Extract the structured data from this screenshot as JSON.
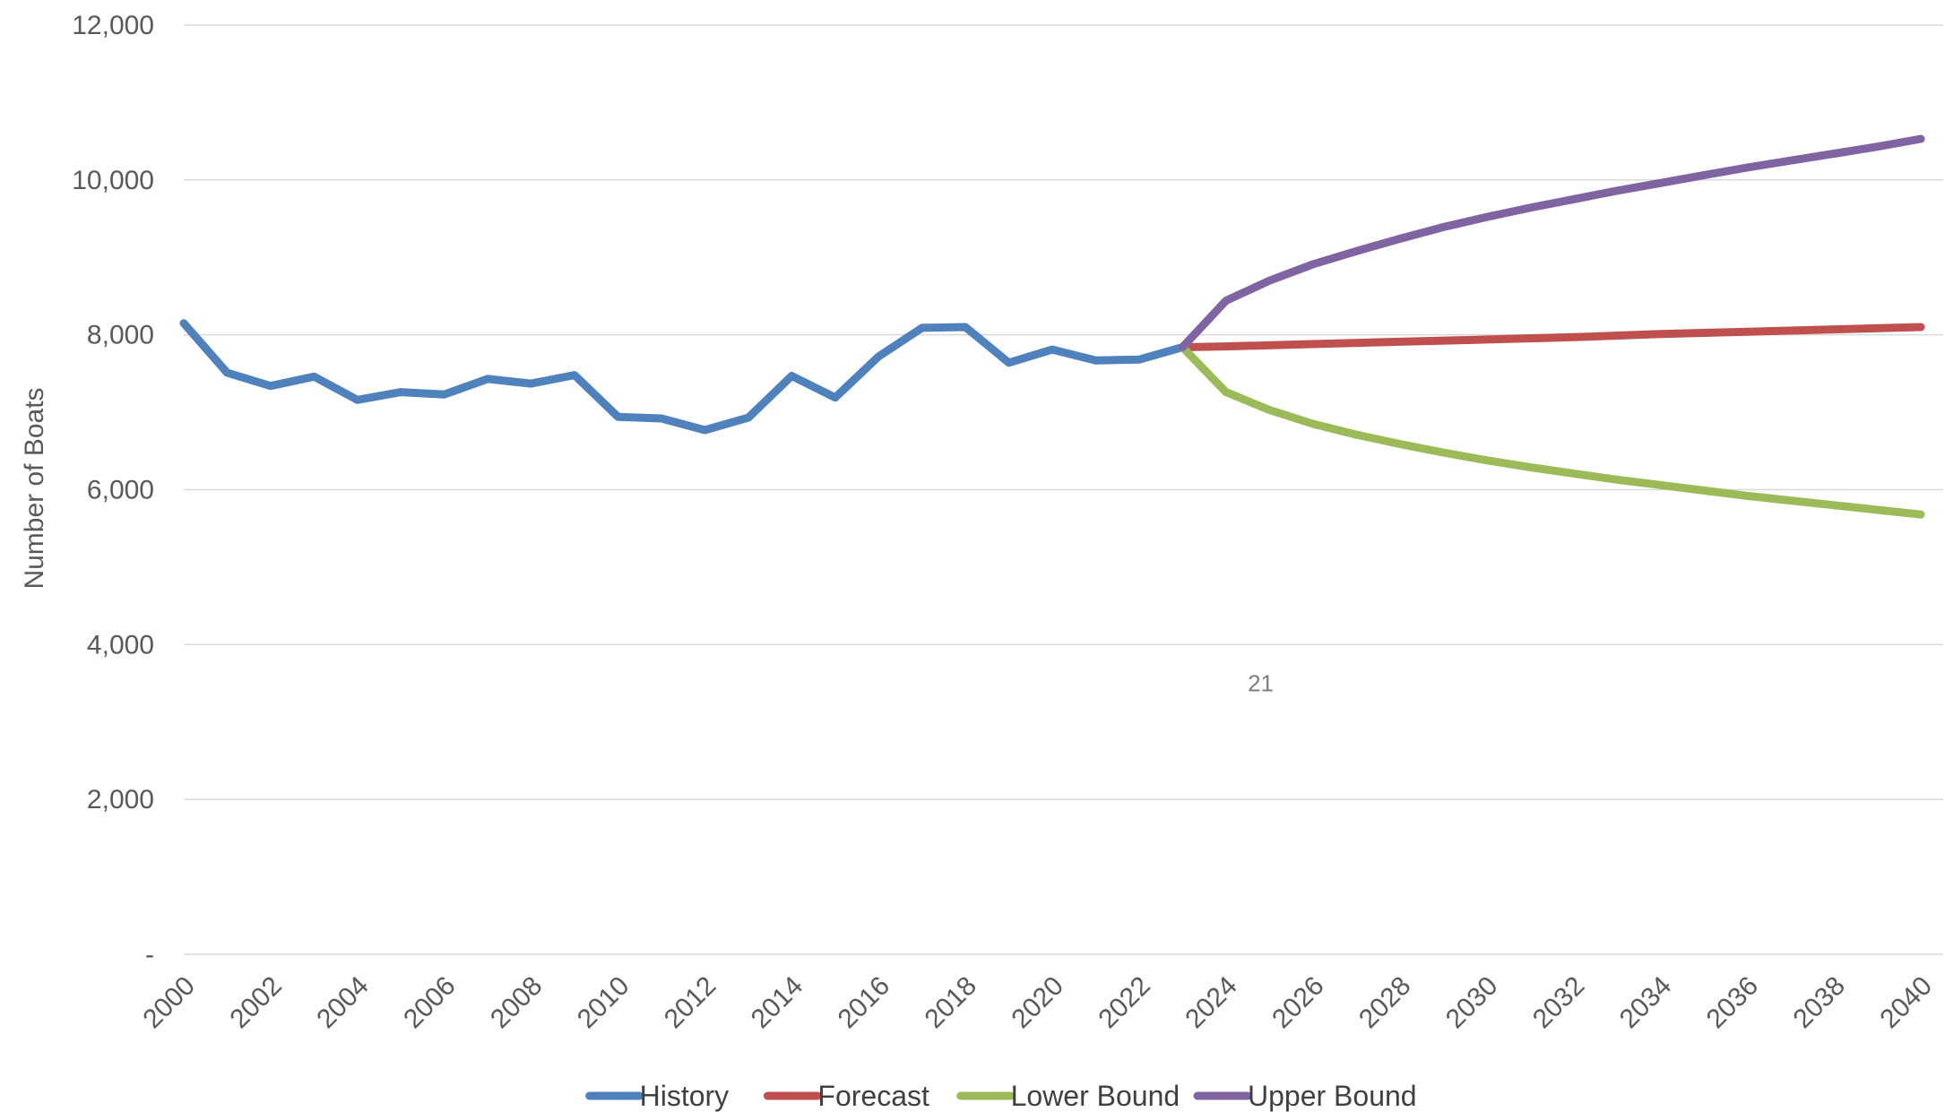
{
  "chart_data": {
    "type": "line",
    "title": "",
    "xlabel": "",
    "ylabel": "Number of Boats",
    "ylim": [
      0,
      12000
    ],
    "xlim": [
      2000,
      2040
    ],
    "y_ticks": [
      {
        "value": 0,
        "label": "-"
      },
      {
        "value": 2000,
        "label": "2,000"
      },
      {
        "value": 4000,
        "label": "4,000"
      },
      {
        "value": 6000,
        "label": "6,000"
      },
      {
        "value": 8000,
        "label": "8,000"
      },
      {
        "value": 10000,
        "label": "10,000"
      },
      {
        "value": 12000,
        "label": "12,000"
      }
    ],
    "x_ticks": [
      "2000",
      "2002",
      "2004",
      "2006",
      "2008",
      "2010",
      "2012",
      "2014",
      "2016",
      "2018",
      "2020",
      "2022",
      "2024",
      "2026",
      "2028",
      "2030",
      "2032",
      "2034",
      "2036",
      "2038",
      "2040"
    ],
    "grid": true,
    "legend_position": "bottom",
    "annotation": {
      "text": "21",
      "x": 2024.8,
      "y": 3500
    },
    "series": [
      {
        "name": "History",
        "color": "#4f81bd",
        "x": [
          2000,
          2001,
          2002,
          2003,
          2004,
          2005,
          2006,
          2007,
          2008,
          2009,
          2010,
          2011,
          2012,
          2013,
          2014,
          2015,
          2016,
          2017,
          2018,
          2019,
          2020,
          2021,
          2022,
          2023
        ],
        "values": [
          8150,
          7510,
          7340,
          7460,
          7160,
          7260,
          7230,
          7430,
          7370,
          7480,
          6940,
          6920,
          6770,
          6930,
          7470,
          7190,
          7720,
          8090,
          8100,
          7640,
          7810,
          7670,
          7680,
          7840
        ]
      },
      {
        "name": "Forecast",
        "color": "#c0504d",
        "x": [
          2023,
          2024,
          2026,
          2028,
          2030,
          2032,
          2034,
          2036,
          2038,
          2040
        ],
        "values": [
          7840,
          7850,
          7880,
          7910,
          7940,
          7970,
          8010,
          8040,
          8070,
          8100
        ]
      },
      {
        "name": "Lower Bound",
        "color": "#9bbb59",
        "x": [
          2023,
          2024,
          2025,
          2026,
          2027,
          2028,
          2029,
          2030,
          2031,
          2032,
          2033,
          2034,
          2035,
          2036,
          2037,
          2038,
          2039,
          2040
        ],
        "values": [
          7840,
          7260,
          7030,
          6850,
          6710,
          6590,
          6480,
          6380,
          6290,
          6210,
          6130,
          6060,
          5990,
          5920,
          5860,
          5800,
          5740,
          5680
        ]
      },
      {
        "name": "Upper Bound",
        "color": "#8064a2",
        "x": [
          2023,
          2024,
          2025,
          2026,
          2027,
          2028,
          2029,
          2030,
          2031,
          2032,
          2033,
          2034,
          2035,
          2036,
          2037,
          2038,
          2039,
          2040
        ],
        "values": [
          7840,
          8440,
          8700,
          8910,
          9080,
          9240,
          9390,
          9520,
          9640,
          9750,
          9860,
          9960,
          10060,
          10160,
          10250,
          10340,
          10430,
          10530
        ]
      }
    ]
  }
}
